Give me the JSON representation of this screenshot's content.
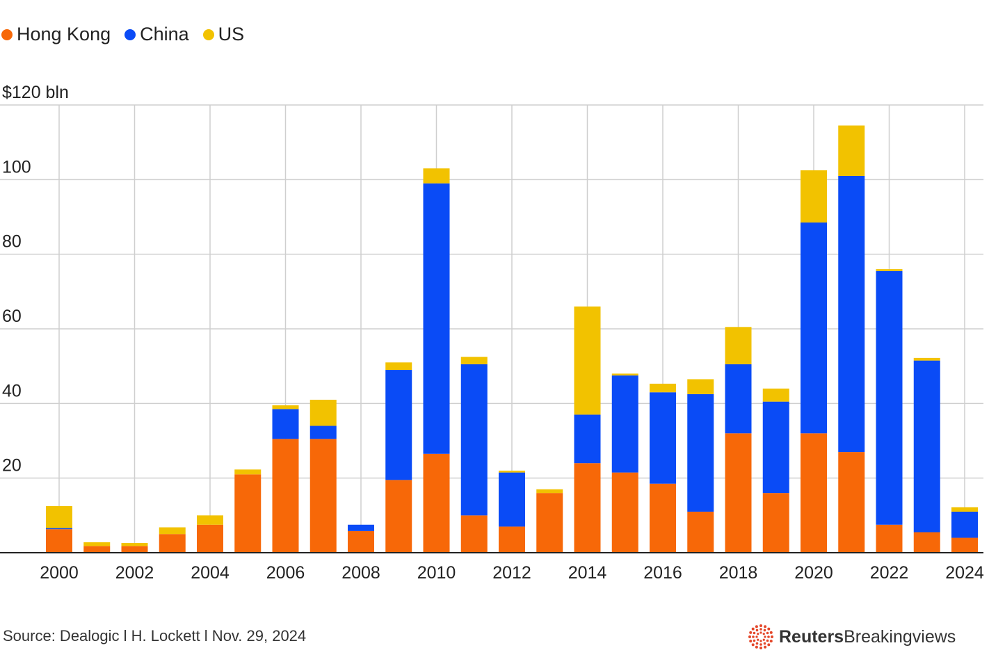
{
  "legend": [
    {
      "label": "Hong Kong",
      "color": "#F76808"
    },
    {
      "label": "China",
      "color": "#0A4BF6"
    },
    {
      "label": "US",
      "color": "#F2C200"
    }
  ],
  "footer": {
    "source": "Source: Dealogic l H. Lockett l Nov. 29, 2024",
    "brand_strong": "Reuters",
    "brand_light": "Breakingviews"
  },
  "chart_data": {
    "type": "bar",
    "stacked": true,
    "title": "",
    "xlabel": "",
    "ylabel": "$120 bln",
    "ylim": [
      0,
      120
    ],
    "yticks": [
      {
        "value": 120,
        "label": "$120 bln"
      },
      {
        "value": 100,
        "label": "100"
      },
      {
        "value": 80,
        "label": "80"
      },
      {
        "value": 60,
        "label": "60"
      },
      {
        "value": 40,
        "label": "40"
      },
      {
        "value": 20,
        "label": "20"
      }
    ],
    "xtick_labels": [
      "2000",
      "2002",
      "2004",
      "2006",
      "2008",
      "2010",
      "2012",
      "2014",
      "2016",
      "2018",
      "2020",
      "2022",
      "2024"
    ],
    "categories": [
      "2000",
      "2001",
      "2002",
      "2003",
      "2004",
      "2005",
      "2006",
      "2007",
      "2008",
      "2009",
      "2010",
      "2011",
      "2012",
      "2013",
      "2014",
      "2015",
      "2016",
      "2017",
      "2018",
      "2019",
      "2020",
      "2021",
      "2022",
      "2023",
      "2024"
    ],
    "series": [
      {
        "name": "Hong Kong",
        "color": "#F76808",
        "values": [
          6.3,
          1.8,
          1.8,
          5.0,
          7.5,
          21.0,
          30.5,
          30.5,
          5.8,
          19.5,
          26.5,
          10.0,
          7.0,
          16.0,
          24.0,
          21.5,
          18.5,
          11.0,
          32.0,
          16.0,
          32.0,
          27.0,
          7.5,
          5.5,
          4.0
        ]
      },
      {
        "name": "China",
        "color": "#0A4BF6",
        "values": [
          0.3,
          0.0,
          0.0,
          0.0,
          0.0,
          0.0,
          8.0,
          3.5,
          1.7,
          29.5,
          72.5,
          40.5,
          14.5,
          0.0,
          13.0,
          26.0,
          24.5,
          31.5,
          18.5,
          24.5,
          56.5,
          74.0,
          68.0,
          46.0,
          7.0
        ]
      },
      {
        "name": "US",
        "color": "#F2C200",
        "values": [
          5.9,
          1.0,
          0.8,
          1.8,
          2.5,
          1.3,
          1.0,
          7.0,
          0.0,
          2.0,
          4.0,
          2.0,
          0.5,
          1.0,
          29.0,
          0.5,
          2.3,
          4.0,
          10.0,
          3.5,
          14.0,
          13.5,
          0.5,
          0.7,
          1.2
        ]
      }
    ]
  }
}
